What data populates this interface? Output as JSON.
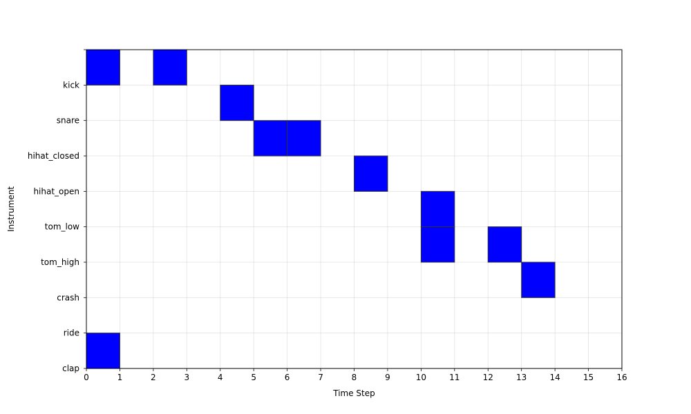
{
  "chart_data": {
    "type": "heatmap",
    "title": "",
    "xlabel": "Time Step",
    "ylabel": "Instrument",
    "xlim": [
      0,
      16
    ],
    "ylim": [
      0,
      9
    ],
    "x_ticks": [
      0,
      1,
      2,
      3,
      4,
      5,
      6,
      7,
      8,
      9,
      10,
      11,
      12,
      13,
      14,
      15,
      16
    ],
    "x_tick_labels": [
      "0",
      "1",
      "2",
      "3",
      "4",
      "5",
      "6",
      "7",
      "8",
      "9",
      "10",
      "11",
      "12",
      "13",
      "14",
      "15",
      "16"
    ],
    "y_ticks": [
      0,
      1,
      2,
      3,
      4,
      5,
      6,
      7,
      8,
      9
    ],
    "y_tick_labels": [
      "clap",
      "ride",
      "crash",
      "tom_high",
      "tom_low",
      "hihat_open",
      "hihat_closed",
      "snare",
      "kick",
      ""
    ],
    "grid": true,
    "cell_color": "#0000ff",
    "cell_edge_color": "#333333",
    "cells": [
      {
        "x": 0,
        "y": 8
      },
      {
        "x": 2,
        "y": 8
      },
      {
        "x": 4,
        "y": 7
      },
      {
        "x": 5,
        "y": 6
      },
      {
        "x": 6,
        "y": 6
      },
      {
        "x": 8,
        "y": 5
      },
      {
        "x": 10,
        "y": 4
      },
      {
        "x": 10,
        "y": 3
      },
      {
        "x": 12,
        "y": 3
      },
      {
        "x": 13,
        "y": 2
      },
      {
        "x": 0,
        "y": 0
      }
    ]
  }
}
